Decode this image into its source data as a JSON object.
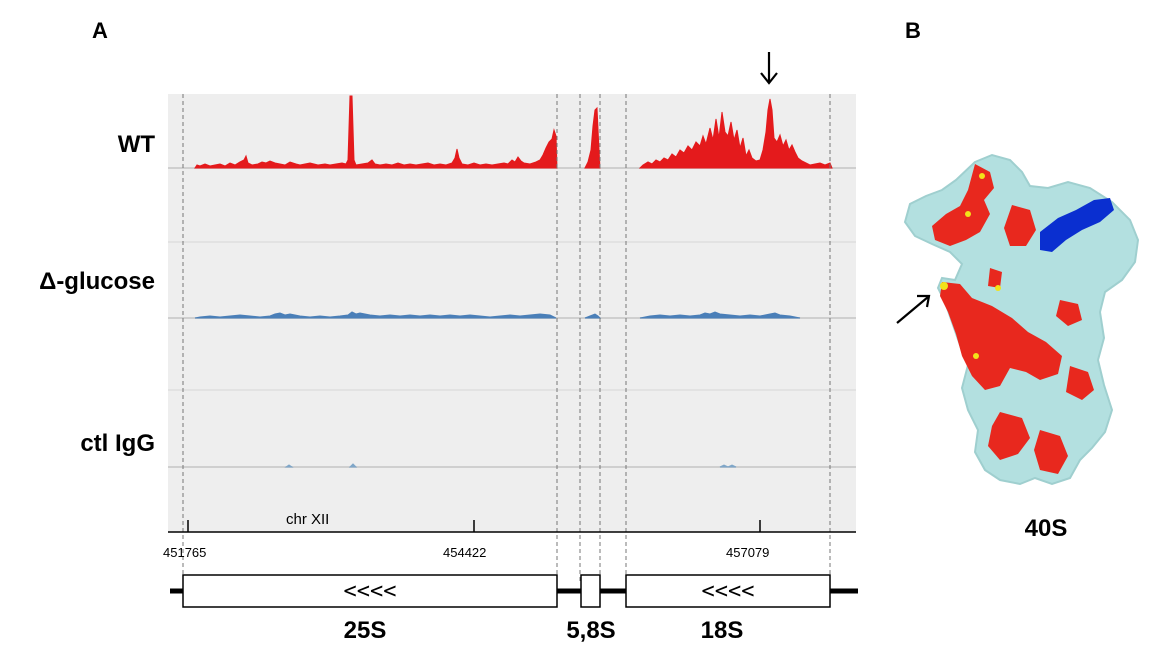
{
  "panels": {
    "a_label": "A",
    "b_label": "B"
  },
  "tracks": [
    {
      "label": "WT",
      "color": "#e41a1c"
    },
    {
      "label": "Δ-glucose",
      "color": "#4a7fb8"
    },
    {
      "label": "ctl IgG",
      "color": "#7fa6c8"
    }
  ],
  "axis": {
    "chromosome": "chr XII",
    "ticks": [
      {
        "label": "451765"
      },
      {
        "label": "454422"
      },
      {
        "label": "457079"
      }
    ]
  },
  "genes": [
    {
      "name": "25S",
      "direction_label": "<<<<"
    },
    {
      "name": "5,8S",
      "direction_label": ""
    },
    {
      "name": "18S",
      "direction_label": "<<<<"
    }
  ],
  "structure": {
    "label": "40S",
    "colors": {
      "protein": "#b3e0e0",
      "crosslink": "#e8281e",
      "highlight": "#0a2fd0",
      "peak": "#f2e21a"
    }
  },
  "colors": {
    "browser_bg": "#eeeeee",
    "track_separator": "#d0d0d0",
    "guide_line": "#777777"
  }
}
